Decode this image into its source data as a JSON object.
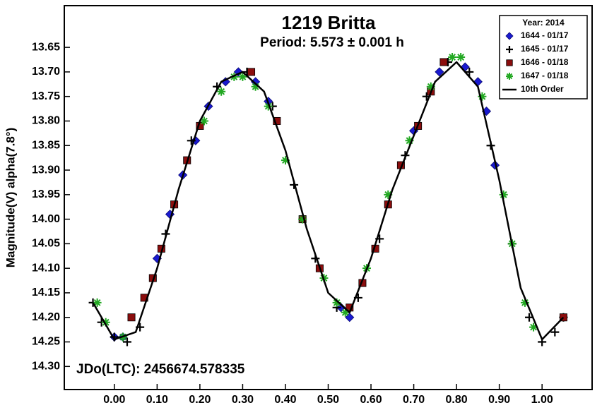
{
  "chart_data": {
    "type": "scatter",
    "title": "1219 Britta",
    "subtitle": "Period: 5.573 ± 0.001 h",
    "y_label": "Magnitude(V) alpha(7.8°)",
    "annotation": "JDo(LTC): 2456674.578335",
    "legend_title": "Year: 2014",
    "legend": "top-right",
    "xlim": [
      -0.117,
      1.117
    ],
    "ylim": [
      14.347,
      13.565
    ],
    "xticks": [
      {
        "value": 0,
        "label": "0.00"
      },
      {
        "value": 0.1,
        "label": "0.10"
      },
      {
        "value": 0.2,
        "label": "0.20"
      },
      {
        "value": 0.3,
        "label": "0.30"
      },
      {
        "value": 0.4,
        "label": "0.40"
      },
      {
        "value": 0.5,
        "label": "0.50"
      },
      {
        "value": 0.6,
        "label": "0.60"
      },
      {
        "value": 0.7,
        "label": "0.70"
      },
      {
        "value": 0.8,
        "label": "0.80"
      },
      {
        "value": 0.9,
        "label": "0.90"
      },
      {
        "value": 1,
        "label": "1.00"
      }
    ],
    "yticks": [
      13.65,
      {
        "value": 13.7,
        "label": "13.70"
      },
      13.75,
      {
        "value": 13.8,
        "label": "13.80"
      },
      13.85,
      {
        "value": 13.9,
        "label": "13.90"
      },
      13.95,
      {
        "value": 14,
        "label": "14.00"
      },
      14.05,
      {
        "value": 14.1,
        "label": "14.10"
      },
      14.15,
      {
        "value": 14.2,
        "label": "14.20"
      },
      14.25,
      {
        "value": 14.3,
        "label": "14.30"
      }
    ],
    "series": [
      {
        "name": "1644 - 01/17",
        "marker": "diamond",
        "color": "#1a1ad0",
        "x": [
          0.0,
          0.02,
          0.1,
          0.13,
          0.16,
          0.19,
          0.22,
          0.26,
          0.29,
          0.33,
          0.36,
          0.53,
          0.55,
          0.7,
          0.76,
          0.82,
          0.85,
          0.87,
          0.89
        ],
        "values": [
          14.24,
          14.24,
          14.08,
          13.99,
          13.91,
          13.84,
          13.77,
          13.72,
          13.7,
          13.72,
          13.76,
          14.18,
          14.2,
          13.82,
          13.7,
          13.69,
          13.72,
          13.78,
          13.89
        ]
      },
      {
        "name": "1645 - 01/17",
        "marker": "plus",
        "color": "#000000",
        "x": [
          -0.05,
          -0.03,
          0.0,
          0.03,
          0.06,
          0.12,
          0.18,
          0.24,
          0.31,
          0.37,
          0.42,
          0.47,
          0.52,
          0.57,
          0.62,
          0.68,
          0.73,
          0.78,
          0.83,
          0.88,
          0.93,
          0.97,
          1.0,
          1.03,
          1.05
        ],
        "values": [
          14.17,
          14.21,
          14.24,
          14.25,
          14.22,
          14.03,
          13.84,
          13.73,
          13.7,
          13.77,
          13.93,
          14.08,
          14.18,
          14.16,
          14.04,
          13.87,
          13.75,
          13.68,
          13.7,
          13.85,
          14.05,
          14.2,
          14.25,
          14.23,
          14.2
        ]
      },
      {
        "name": "1646 - 01/18",
        "marker": "square",
        "color": "#8b0d0d",
        "x": [
          0.04,
          0.07,
          0.09,
          0.11,
          0.14,
          0.17,
          0.2,
          0.32,
          0.38,
          0.44,
          0.48,
          0.55,
          0.58,
          0.61,
          0.64,
          0.67,
          0.71,
          0.74,
          0.77,
          1.05
        ],
        "values": [
          14.2,
          14.16,
          14.12,
          14.06,
          13.97,
          13.88,
          13.81,
          13.7,
          13.8,
          14.0,
          14.1,
          14.18,
          14.13,
          14.06,
          13.97,
          13.89,
          13.81,
          13.74,
          13.68,
          14.2
        ]
      },
      {
        "name": "1647 - 01/18",
        "marker": "asterisk",
        "color": "#22a822",
        "x": [
          -0.04,
          -0.02,
          0.02,
          0.21,
          0.25,
          0.28,
          0.3,
          0.33,
          0.36,
          0.4,
          0.44,
          0.49,
          0.52,
          0.54,
          0.59,
          0.64,
          0.69,
          0.74,
          0.79,
          0.81,
          0.86,
          0.91,
          0.93,
          0.96,
          0.98
        ],
        "values": [
          14.17,
          14.21,
          14.24,
          13.8,
          13.74,
          13.71,
          13.71,
          13.73,
          13.77,
          13.88,
          14.0,
          14.12,
          14.17,
          14.19,
          14.1,
          13.95,
          13.84,
          13.73,
          13.67,
          13.67,
          13.75,
          13.95,
          14.05,
          14.17,
          14.22
        ]
      },
      {
        "name": "10th Order",
        "type": "line",
        "color": "#000000",
        "x": [
          -0.05,
          0.0,
          0.05,
          0.1,
          0.15,
          0.2,
          0.25,
          0.3,
          0.35,
          0.4,
          0.45,
          0.5,
          0.55,
          0.6,
          0.65,
          0.7,
          0.75,
          0.8,
          0.85,
          0.9,
          0.95,
          1.0,
          1.05
        ],
        "values": [
          14.17,
          14.245,
          14.23,
          14.1,
          13.94,
          13.8,
          13.72,
          13.7,
          13.74,
          13.86,
          14.02,
          14.15,
          14.19,
          14.08,
          13.94,
          13.83,
          13.72,
          13.68,
          13.73,
          13.92,
          14.14,
          14.245,
          14.2
        ]
      }
    ]
  }
}
